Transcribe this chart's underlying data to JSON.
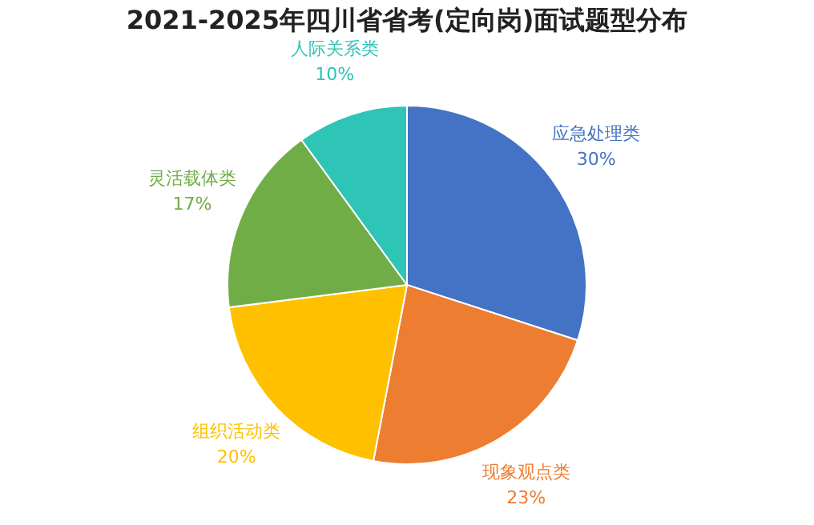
{
  "chart_data": {
    "type": "pie",
    "title": "2021-2025年四川省省考(定向岗)面试题型分布",
    "categories": [
      "应急处理类",
      "现象观点类",
      "组织活动类",
      "灵活载体类",
      "人际关系类"
    ],
    "values": [
      30,
      23,
      20,
      17,
      10
    ],
    "colors": [
      "#4472c4",
      "#ed7d31",
      "#ffc000",
      "#70ad47",
      "#2ec4b6"
    ],
    "value_labels": [
      "30%",
      "23%",
      "20%",
      "17%",
      "10%"
    ]
  }
}
